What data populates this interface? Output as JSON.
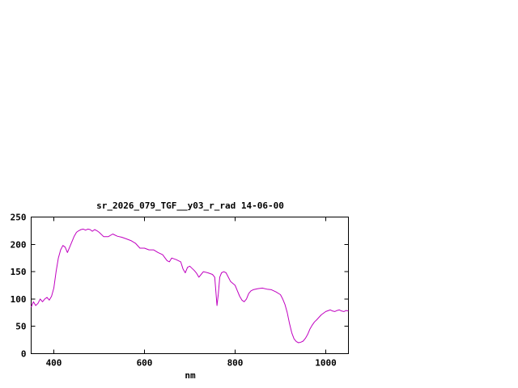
{
  "colors": {
    "background": "#ffffff",
    "axis": "#000000",
    "text": "#000000",
    "line": "#c000c0"
  },
  "chart_data": {
    "type": "line",
    "title": "sr_2026_079_TGF__y03_r_rad 14-06-00",
    "xlabel": "nm",
    "ylabel": "",
    "xlim": [
      350,
      1050
    ],
    "ylim": [
      0,
      250
    ],
    "xticks": [
      400,
      600,
      800,
      1000
    ],
    "yticks": [
      0,
      50,
      100,
      150,
      200,
      250
    ],
    "grid": false,
    "legend": "none",
    "line_color": "#c000c0",
    "x": [
      350,
      355,
      360,
      365,
      370,
      375,
      380,
      385,
      390,
      395,
      400,
      405,
      410,
      415,
      420,
      425,
      430,
      435,
      440,
      445,
      450,
      455,
      460,
      465,
      470,
      475,
      480,
      485,
      490,
      495,
      500,
      510,
      520,
      530,
      540,
      550,
      560,
      570,
      580,
      590,
      600,
      610,
      620,
      630,
      640,
      650,
      655,
      660,
      670,
      680,
      685,
      690,
      695,
      700,
      710,
      715,
      720,
      725,
      730,
      740,
      750,
      755,
      760,
      763,
      766,
      770,
      775,
      780,
      785,
      790,
      800,
      805,
      810,
      815,
      820,
      825,
      830,
      835,
      840,
      850,
      860,
      870,
      880,
      890,
      900,
      905,
      910,
      915,
      920,
      925,
      930,
      935,
      940,
      945,
      950,
      955,
      960,
      965,
      970,
      975,
      980,
      990,
      1000,
      1010,
      1015,
      1020,
      1025,
      1030,
      1035,
      1040,
      1045,
      1050
    ],
    "y": [
      85,
      95,
      88,
      92,
      100,
      95,
      100,
      103,
      98,
      105,
      120,
      150,
      175,
      190,
      198,
      195,
      185,
      195,
      205,
      215,
      222,
      225,
      227,
      228,
      226,
      228,
      227,
      224,
      227,
      225,
      222,
      214,
      214,
      219,
      215,
      213,
      210,
      207,
      202,
      193,
      193,
      190,
      190,
      185,
      181,
      170,
      168,
      175,
      172,
      168,
      155,
      148,
      158,
      160,
      152,
      147,
      140,
      145,
      150,
      148,
      145,
      140,
      88,
      110,
      140,
      148,
      150,
      148,
      140,
      132,
      125,
      115,
      105,
      98,
      95,
      100,
      110,
      115,
      117,
      119,
      120,
      118,
      117,
      113,
      108,
      100,
      90,
      75,
      55,
      38,
      27,
      22,
      20,
      21,
      23,
      28,
      35,
      45,
      52,
      58,
      62,
      71,
      77,
      80,
      78,
      77,
      79,
      80,
      78,
      77,
      79,
      78
    ]
  }
}
